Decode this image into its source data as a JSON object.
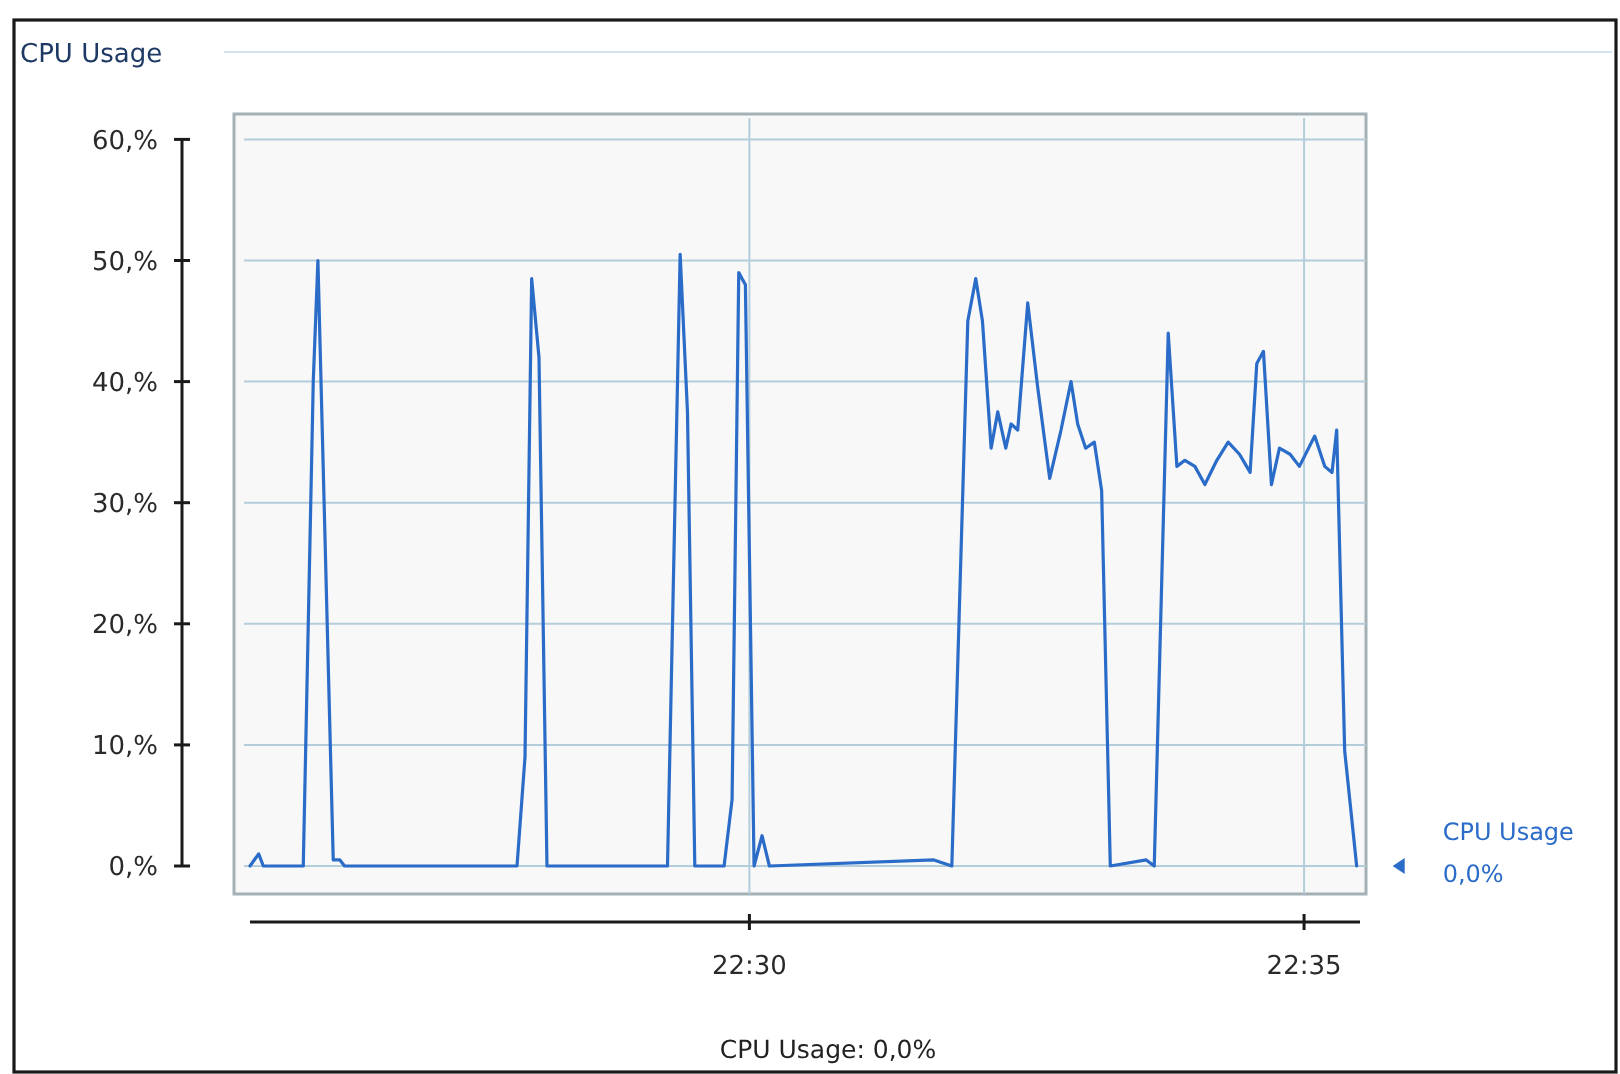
{
  "chart_data": {
    "type": "line",
    "title": "CPU Usage",
    "annotations": [
      "0,0%",
      "CPU Usage: 0,0%"
    ],
    "x": [
      22.425,
      22.4263,
      22.427,
      22.433,
      22.4345,
      22.4352,
      22.4375,
      22.4385,
      22.4392,
      22.4651,
      22.4663,
      22.4673,
      22.4684,
      22.4696,
      22.4877,
      22.4896,
      22.4907,
      22.4918,
      22.4962,
      22.4974,
      22.4984,
      22.4994,
      22.5007,
      22.5019,
      22.503,
      22.5277,
      22.5304,
      22.5328,
      22.534,
      22.535,
      22.5363,
      22.5373,
      22.5385,
      22.5393,
      22.5403,
      22.5418,
      22.5433,
      22.5451,
      22.5468,
      22.5483,
      22.5493,
      22.5505,
      22.5518,
      22.5529,
      22.5542,
      22.5596,
      22.5608,
      22.5629,
      22.5642,
      22.5654,
      22.5669,
      22.5684,
      22.5702,
      22.5719,
      22.5736,
      22.5752,
      22.5762,
      22.5772,
      22.5784,
      22.5796,
      22.5812,
      22.5826,
      22.5849,
      22.5864,
      22.5875,
      22.5882,
      22.5894,
      22.5912
    ],
    "series": [
      {
        "name": "CPU Usage",
        "color": "#2a6cc8",
        "values": [
          0,
          1,
          0,
          0,
          40,
          50,
          0.5,
          0.5,
          0,
          0,
          9,
          48.5,
          42,
          0,
          0,
          50.5,
          37.5,
          0,
          0,
          5.5,
          49,
          48,
          0,
          2.5,
          0,
          0.5,
          0,
          45,
          48.5,
          45,
          34.5,
          37.5,
          34.5,
          36.5,
          36,
          46.5,
          39.5,
          32,
          36,
          40,
          36.5,
          34.5,
          35,
          31,
          0,
          0.5,
          0,
          44,
          33,
          33.5,
          33,
          31.5,
          33.5,
          35,
          34,
          32.5,
          41.5,
          42.5,
          31.5,
          34.5,
          34,
          33,
          35.5,
          33,
          32.5,
          36,
          9.5,
          0
        ]
      }
    ],
    "xlim": [
      22.425,
      22.5917
    ],
    "xticks": [
      {
        "value": 22.5,
        "label": "22:30"
      },
      {
        "value": 22.5833,
        "label": "22:35"
      }
    ],
    "ylim": [
      0,
      60
    ],
    "yticks": [
      {
        "value": 0,
        "label": "0,%"
      },
      {
        "value": 10,
        "label": "10,%"
      },
      {
        "value": 20,
        "label": "20,%"
      },
      {
        "value": 30,
        "label": "30,%"
      },
      {
        "value": 40,
        "label": "40,%"
      },
      {
        "value": 50,
        "label": "50,%"
      },
      {
        "value": 60,
        "label": "60,%"
      }
    ],
    "grid": true,
    "legend": "right"
  }
}
